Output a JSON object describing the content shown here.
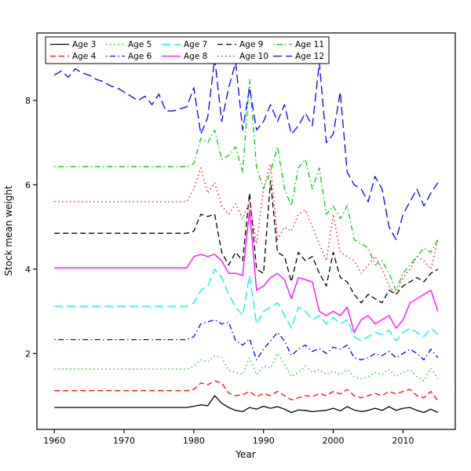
{
  "chart_data": {
    "type": "line",
    "title": "",
    "xlabel": "Year",
    "ylabel": "Stock mean weight",
    "x_start": 1960,
    "x_end": 2015,
    "xticks": [
      1960,
      1970,
      1980,
      1990,
      2000,
      2010
    ],
    "yticks": [
      2,
      4,
      6,
      8
    ],
    "xlim": [
      1957.5,
      2017.5
    ],
    "ylim": [
      0.2,
      9.6
    ],
    "grid": false,
    "legend_position": "top-left",
    "legend_ncol": 5,
    "series": [
      {
        "name": "Age 3",
        "color": "#000000",
        "dash": "",
        "constant_1960_1979": 0.72,
        "values_1980_2015": [
          0.75,
          0.78,
          0.76,
          1.0,
          0.82,
          0.72,
          0.65,
          0.62,
          0.72,
          0.68,
          0.75,
          0.7,
          0.74,
          0.68,
          0.6,
          0.66,
          0.65,
          0.62,
          0.64,
          0.65,
          0.7,
          0.64,
          0.74,
          0.66,
          0.62,
          0.65,
          0.7,
          0.65,
          0.74,
          0.65,
          0.7,
          0.72,
          0.65,
          0.6,
          0.68,
          0.6
        ]
      },
      {
        "name": "Age 4",
        "color": "#ff0000",
        "dash": "7,4",
        "constant_1960_1979": 1.12,
        "values_1980_2015": [
          1.15,
          1.3,
          1.26,
          1.35,
          1.3,
          1.06,
          1.0,
          1.02,
          1.1,
          0.98,
          1.05,
          1.0,
          1.1,
          1.0,
          0.9,
          0.95,
          1.0,
          0.98,
          1.05,
          1.0,
          1.1,
          1.04,
          1.15,
          1.0,
          0.95,
          1.0,
          1.05,
          1.0,
          1.1,
          1.04,
          1.1,
          1.15,
          1.0,
          0.95,
          1.1,
          0.88
        ]
      },
      {
        "name": "Age 5",
        "color": "#00cd00",
        "dash": "1.5,3.5",
        "constant_1960_1979": 1.63,
        "values_1980_2015": [
          1.7,
          1.85,
          1.8,
          1.95,
          1.9,
          1.6,
          1.55,
          1.5,
          1.9,
          1.5,
          1.7,
          1.65,
          2.0,
          1.75,
          1.45,
          1.55,
          1.7,
          1.55,
          1.62,
          1.5,
          1.58,
          1.5,
          1.62,
          1.45,
          1.4,
          1.45,
          1.55,
          1.5,
          1.62,
          1.45,
          1.55,
          1.62,
          1.45,
          1.35,
          1.65,
          1.4
        ]
      },
      {
        "name": "Age 6",
        "color": "#0000ff",
        "dash": "1.5,3.5,7,3.5",
        "constant_1960_1979": 2.33,
        "values_1980_2015": [
          2.4,
          2.7,
          2.75,
          2.8,
          2.7,
          2.74,
          2.3,
          2.2,
          2.35,
          1.85,
          2.1,
          2.3,
          2.5,
          2.3,
          1.95,
          2.1,
          2.2,
          2.05,
          2.12,
          2.0,
          2.15,
          2.1,
          2.2,
          1.9,
          1.85,
          1.9,
          2.0,
          1.95,
          2.05,
          1.9,
          2.0,
          2.1,
          2.0,
          1.85,
          2.1,
          1.9
        ]
      },
      {
        "name": "Age 7",
        "color": "#00eeee",
        "dash": "11,5",
        "constant_1960_1979": 3.12,
        "values_1980_2015": [
          3.2,
          3.5,
          3.6,
          4.0,
          3.8,
          3.4,
          3.1,
          2.9,
          3.85,
          2.7,
          3.0,
          3.1,
          3.2,
          2.9,
          2.6,
          3.1,
          3.0,
          2.8,
          2.9,
          2.7,
          2.85,
          2.7,
          2.8,
          2.4,
          2.3,
          2.4,
          2.5,
          2.45,
          2.55,
          2.3,
          2.5,
          2.6,
          2.5,
          2.4,
          2.6,
          2.45
        ]
      },
      {
        "name": "Age 8",
        "color": "#ff00ff",
        "dash": "",
        "constant_1960_1979": 4.03,
        "values_1980_2015": [
          4.3,
          4.35,
          4.3,
          4.35,
          4.2,
          3.9,
          3.9,
          3.85,
          5.4,
          3.5,
          3.6,
          3.8,
          3.9,
          3.75,
          3.3,
          3.8,
          3.75,
          3.7,
          3.0,
          2.9,
          3.0,
          2.9,
          3.1,
          2.5,
          2.8,
          2.9,
          2.7,
          2.8,
          2.9,
          2.6,
          2.8,
          3.2,
          3.3,
          3.4,
          3.5,
          3.0
        ]
      },
      {
        "name": "Age 9",
        "color": "#000000",
        "dash": "7,4",
        "constant_1960_1979": 4.85,
        "values_1980_2015": [
          4.9,
          5.3,
          5.25,
          5.3,
          4.4,
          4.1,
          4.4,
          4.2,
          5.8,
          4.0,
          3.9,
          6.1,
          4.4,
          4.3,
          3.7,
          4.4,
          4.2,
          4.3,
          3.9,
          3.6,
          4.4,
          3.8,
          3.7,
          3.4,
          3.2,
          3.4,
          3.3,
          3.2,
          3.5,
          3.4,
          3.6,
          3.7,
          3.8,
          3.7,
          3.9,
          4.0
        ]
      },
      {
        "name": "Age 10",
        "color": "#ff0000",
        "dash": "1.5,3.5",
        "constant_1960_1979": 5.6,
        "values_1980_2015": [
          5.9,
          6.4,
          5.8,
          6.05,
          5.5,
          5.3,
          5.55,
          5.2,
          5.6,
          4.6,
          5.9,
          6.5,
          4.7,
          5.0,
          4.9,
          5.3,
          5.4,
          5.0,
          4.6,
          4.2,
          5.3,
          4.4,
          4.3,
          4.2,
          3.9,
          4.1,
          4.3,
          4.0,
          3.6,
          3.4,
          3.8,
          4.0,
          4.3,
          4.2,
          4.0,
          4.7
        ]
      },
      {
        "name": "Age 11",
        "color": "#00cd00",
        "dash": "1.5,3.5,7,3.5",
        "constant_1960_1979": 6.43,
        "values_1980_2015": [
          6.5,
          7.1,
          7.0,
          7.3,
          6.6,
          6.7,
          6.9,
          6.3,
          8.5,
          6.4,
          5.9,
          6.3,
          6.9,
          5.9,
          5.5,
          6.4,
          6.6,
          5.9,
          6.4,
          5.3,
          5.5,
          5.2,
          5.5,
          4.7,
          4.6,
          4.5,
          4.1,
          4.2,
          3.9,
          3.5,
          3.9,
          4.1,
          4.3,
          4.5,
          4.4,
          4.7
        ]
      },
      {
        "name": "Age 12",
        "color": "#0000ff",
        "dash": "11,5",
        "values_1960_2015": [
          8.6,
          8.7,
          8.55,
          8.75,
          8.65,
          8.6,
          8.5,
          8.45,
          8.35,
          8.3,
          8.2,
          8.1,
          8.0,
          8.1,
          7.9,
          8.15,
          7.75,
          7.75,
          7.8,
          7.85,
          8.3,
          7.2,
          7.6,
          9.0,
          7.5,
          8.3,
          8.9,
          7.3,
          8.3,
          7.3,
          7.5,
          7.9,
          7.5,
          7.9,
          7.2,
          7.4,
          7.7,
          7.4,
          8.9,
          7.0,
          7.2,
          8.2,
          6.3,
          6.0,
          5.9,
          5.6,
          6.2,
          5.9,
          5.0,
          4.7,
          5.3,
          5.6,
          5.9,
          5.5,
          5.8,
          6.05
        ]
      }
    ]
  }
}
